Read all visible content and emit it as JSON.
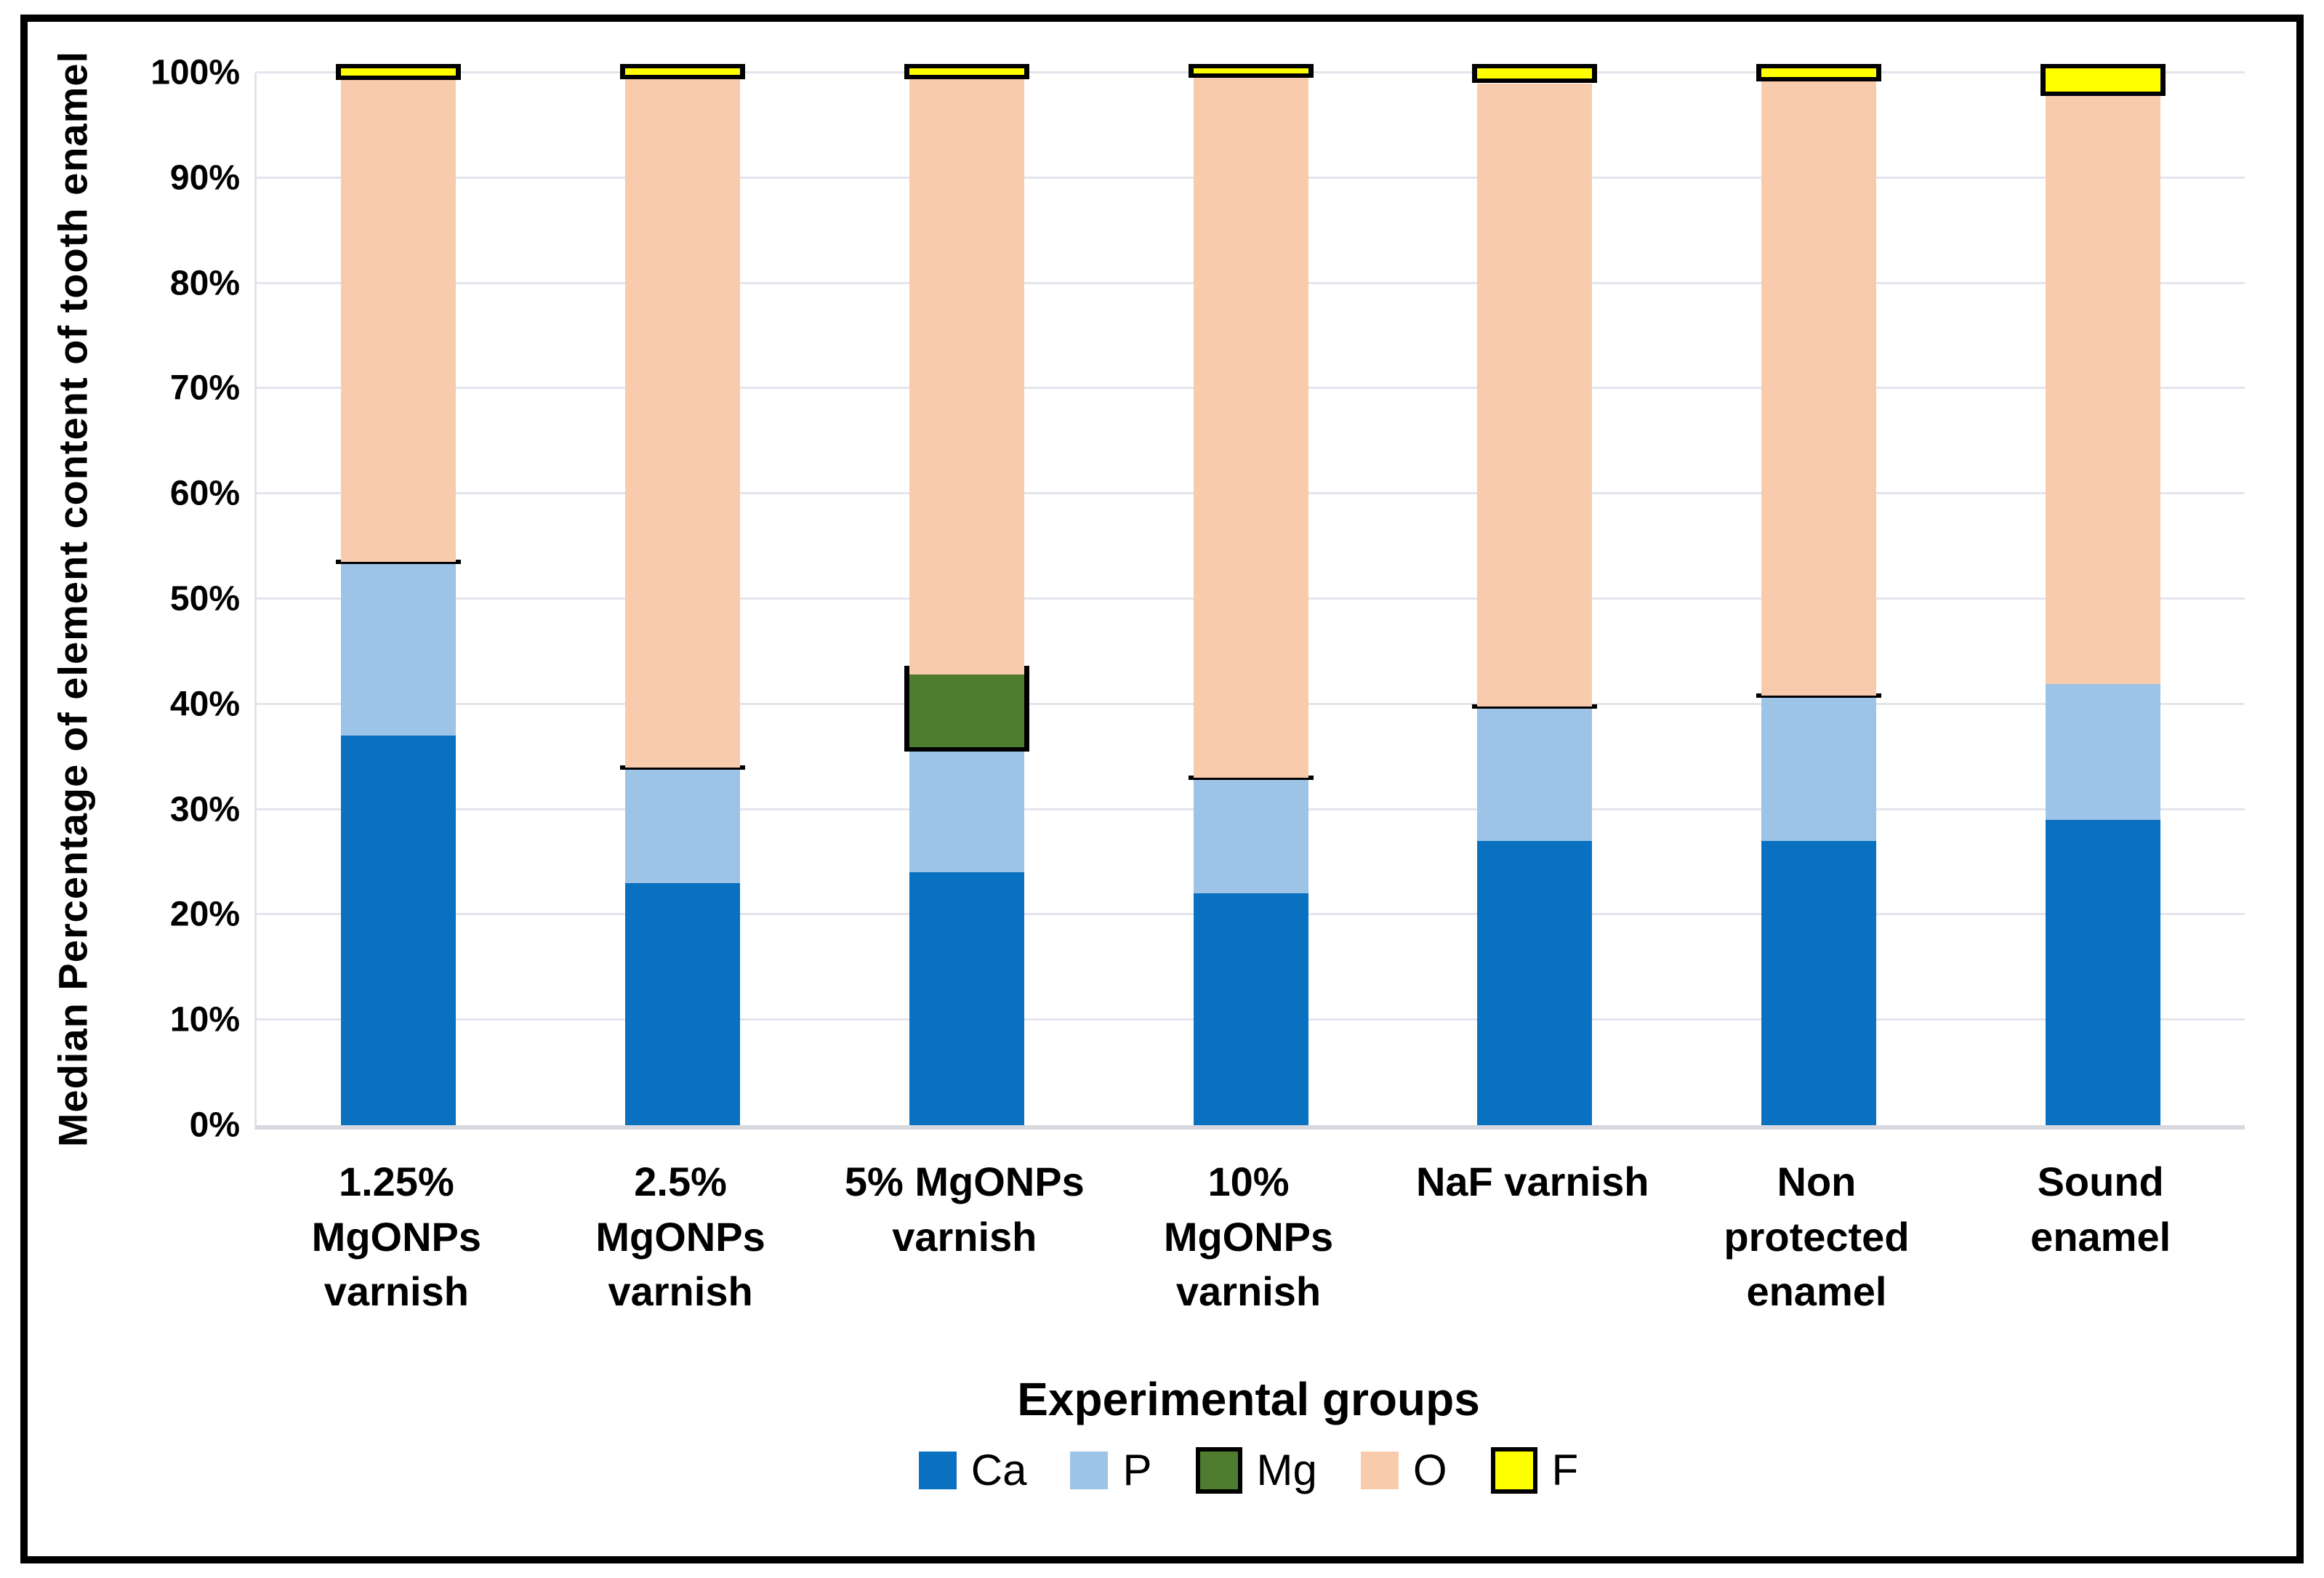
{
  "chart_data": {
    "type": "bar",
    "stacked": true,
    "unit": "%",
    "xlabel": "Experimental groups",
    "ylabel": "Median Percentage of element content of tooth enamel",
    "ylim": [
      0,
      100
    ],
    "grid": true,
    "legend_position": "bottom",
    "y_ticks": [
      "0%",
      "10%",
      "20%",
      "30%",
      "40%",
      "50%",
      "60%",
      "70%",
      "80%",
      "90%",
      "100%"
    ],
    "categories": [
      "1.25%\nMgONPs\nvarnish",
      "2.5%\nMgONPs\nvarnish",
      "5% MgONPs\nvarnish",
      "10%\nMgONPs\nvarnish",
      "NaF varnish",
      "Non\nprotected\nenamel",
      "Sound\nenamel"
    ],
    "series": [
      {
        "name": "Ca",
        "color": "#0A70C0",
        "border": false,
        "values": [
          37,
          23,
          24,
          22,
          27,
          27,
          29
        ]
      },
      {
        "name": "P",
        "color": "#9DC3E6",
        "border": false,
        "values": [
          16.5,
          11,
          11.5,
          11,
          12.8,
          13.8,
          12.9
        ]
      },
      {
        "name": "Mg",
        "color": "#4E7D2F",
        "border": true,
        "zero_style": "cap-line",
        "values": [
          0,
          0,
          7.3,
          0,
          0,
          0,
          null
        ]
      },
      {
        "name": "O",
        "color": "#F8CBAD",
        "border": false,
        "values": [
          45.8,
          65.4,
          56.6,
          66.5,
          59.2,
          58.4,
          55.9
        ]
      },
      {
        "name": "F",
        "color": "#FFFF00",
        "border": true,
        "values": [
          0.7,
          0.6,
          0.6,
          0.5,
          1.0,
          0.8,
          2.2
        ]
      }
    ]
  },
  "style_hints": {
    "gridline_color": "#e4e4ed",
    "axis_line_color": "#d8d8e0",
    "frame_border_color": "#000000",
    "segment_border_color": "#000000"
  }
}
